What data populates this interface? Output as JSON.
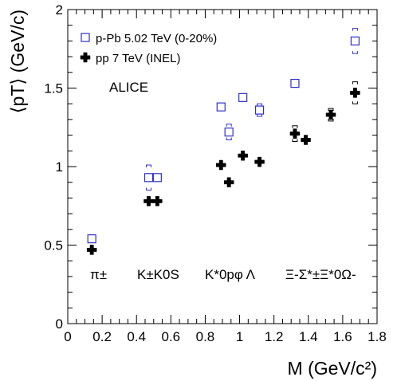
{
  "chart_data": {
    "type": "scatter",
    "xlabel": "M (GeV/c²)",
    "ylabel": "⟨pT⟩ (GeV/c)",
    "xlim": [
      0,
      1.8
    ],
    "ylim": [
      0,
      2.0
    ],
    "x_ticks": [
      "0",
      "0.2",
      "0.4",
      "0.6",
      "0.8",
      "1",
      "1.2",
      "1.4",
      "1.6",
      "1.8"
    ],
    "y_ticks": [
      "0",
      "0.5",
      "1",
      "1.5",
      "2"
    ],
    "grid": false,
    "legend_position": "top-left",
    "annotation": "ALICE",
    "particle_labels": [
      "π±",
      "K±K0S",
      "K*0pφ Λ",
      "Ξ-Σ*±Ξ*0Ω-"
    ],
    "series": [
      {
        "name": "p-Pb 5.02 TeV (0-20%)",
        "color": "#2f2fc8",
        "marker": "open-square",
        "x": [
          0.14,
          0.494,
          0.498,
          0.892,
          0.938,
          1.019,
          1.116,
          1.322,
          1.672
        ],
        "y": [
          0.54,
          0.93,
          0.93,
          1.38,
          1.22,
          1.44,
          1.36,
          1.53,
          1.8
        ],
        "syst_lo": [
          0.0,
          0.08,
          0.0,
          0.0,
          0.05,
          0.0,
          0.04,
          0.02,
          0.08
        ],
        "syst_hi": [
          0.0,
          0.08,
          0.0,
          0.0,
          0.05,
          0.0,
          0.04,
          0.02,
          0.08
        ]
      },
      {
        "name": "pp 7 TeV (INEL)",
        "color": "#000000",
        "marker": "filled-cross",
        "x": [
          0.14,
          0.494,
          0.498,
          0.892,
          0.938,
          1.019,
          1.116,
          1.322,
          1.385,
          1.531,
          1.672
        ],
        "y": [
          0.47,
          0.78,
          0.78,
          1.01,
          0.9,
          1.07,
          1.03,
          1.21,
          1.17,
          1.33,
          1.47
        ],
        "syst_lo": [
          0.0,
          0.0,
          0.0,
          0.0,
          0.0,
          0.0,
          0.0,
          0.05,
          0.0,
          0.04,
          0.07
        ],
        "syst_hi": [
          0.0,
          0.0,
          0.0,
          0.0,
          0.0,
          0.0,
          0.0,
          0.05,
          0.0,
          0.04,
          0.07
        ]
      }
    ]
  }
}
